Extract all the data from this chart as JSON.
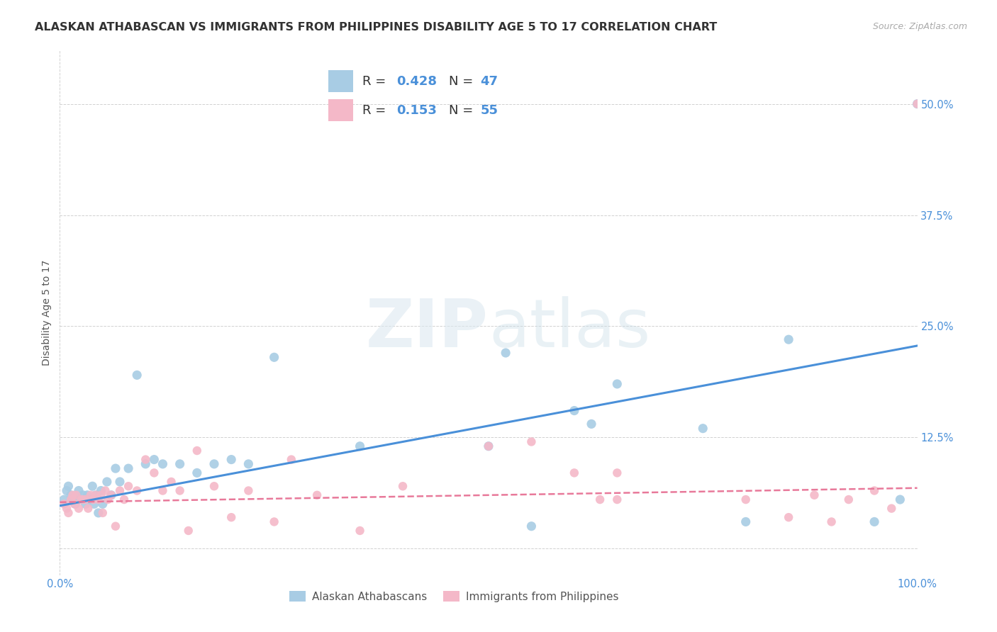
{
  "title": "ALASKAN ATHABASCAN VS IMMIGRANTS FROM PHILIPPINES DISABILITY AGE 5 TO 17 CORRELATION CHART",
  "source": "Source: ZipAtlas.com",
  "ylabel": "Disability Age 5 to 17",
  "xlim": [
    0,
    1.0
  ],
  "ylim": [
    -0.03,
    0.56
  ],
  "ytick_positions": [
    0.0,
    0.125,
    0.25,
    0.375,
    0.5
  ],
  "ytick_labels": [
    "",
    "12.5%",
    "25.0%",
    "37.5%",
    "50.0%"
  ],
  "color_blue": "#a8cce4",
  "color_pink": "#f4b8c8",
  "color_blue_line": "#4a90d9",
  "color_pink_line": "#e8799a",
  "color_blue_text": "#4a90d9",
  "R1": 0.428,
  "N1": 47,
  "R2": 0.153,
  "N2": 55,
  "watermark_zip": "ZIP",
  "watermark_atlas": "atlas",
  "blue_trend_x": [
    0.0,
    1.0
  ],
  "blue_trend_y": [
    0.048,
    0.228
  ],
  "pink_trend_x": [
    0.0,
    1.0
  ],
  "pink_trend_y": [
    0.052,
    0.068
  ],
  "blue_scatter_x": [
    0.005,
    0.008,
    0.01,
    0.013,
    0.015,
    0.018,
    0.02,
    0.022,
    0.025,
    0.027,
    0.03,
    0.032,
    0.035,
    0.038,
    0.04,
    0.042,
    0.045,
    0.048,
    0.05,
    0.055,
    0.06,
    0.065,
    0.07,
    0.08,
    0.09,
    0.1,
    0.11,
    0.12,
    0.14,
    0.16,
    0.18,
    0.2,
    0.22,
    0.25,
    0.35,
    0.5,
    0.52,
    0.55,
    0.6,
    0.62,
    0.65,
    0.75,
    0.8,
    0.85,
    0.95,
    0.98,
    1.0
  ],
  "blue_scatter_y": [
    0.055,
    0.065,
    0.07,
    0.06,
    0.055,
    0.05,
    0.055,
    0.065,
    0.055,
    0.06,
    0.05,
    0.06,
    0.055,
    0.07,
    0.05,
    0.06,
    0.04,
    0.065,
    0.05,
    0.075,
    0.06,
    0.09,
    0.075,
    0.09,
    0.195,
    0.095,
    0.1,
    0.095,
    0.095,
    0.085,
    0.095,
    0.1,
    0.095,
    0.215,
    0.115,
    0.115,
    0.22,
    0.025,
    0.155,
    0.14,
    0.185,
    0.135,
    0.03,
    0.235,
    0.03,
    0.055,
    0.5
  ],
  "pink_scatter_x": [
    0.005,
    0.008,
    0.01,
    0.013,
    0.015,
    0.017,
    0.019,
    0.022,
    0.025,
    0.027,
    0.03,
    0.033,
    0.036,
    0.039,
    0.042,
    0.045,
    0.048,
    0.05,
    0.053,
    0.056,
    0.06,
    0.065,
    0.07,
    0.075,
    0.08,
    0.09,
    0.1,
    0.11,
    0.12,
    0.13,
    0.14,
    0.16,
    0.18,
    0.2,
    0.22,
    0.25,
    0.27,
    0.3,
    0.35,
    0.4,
    0.55,
    0.6,
    0.63,
    0.65,
    0.65,
    0.8,
    0.85,
    0.88,
    0.9,
    0.92,
    0.95,
    0.97,
    1.0,
    0.5,
    0.15
  ],
  "pink_scatter_y": [
    0.05,
    0.045,
    0.04,
    0.055,
    0.06,
    0.05,
    0.06,
    0.045,
    0.055,
    0.055,
    0.055,
    0.045,
    0.06,
    0.055,
    0.06,
    0.055,
    0.06,
    0.04,
    0.065,
    0.055,
    0.06,
    0.025,
    0.065,
    0.055,
    0.07,
    0.065,
    0.1,
    0.085,
    0.065,
    0.075,
    0.065,
    0.11,
    0.07,
    0.035,
    0.065,
    0.03,
    0.1,
    0.06,
    0.02,
    0.07,
    0.12,
    0.085,
    0.055,
    0.085,
    0.055,
    0.055,
    0.035,
    0.06,
    0.03,
    0.055,
    0.065,
    0.045,
    0.5,
    0.115,
    0.02
  ],
  "title_fontsize": 11.5,
  "axis_label_fontsize": 10,
  "tick_fontsize": 10.5,
  "legend_fontsize": 13
}
